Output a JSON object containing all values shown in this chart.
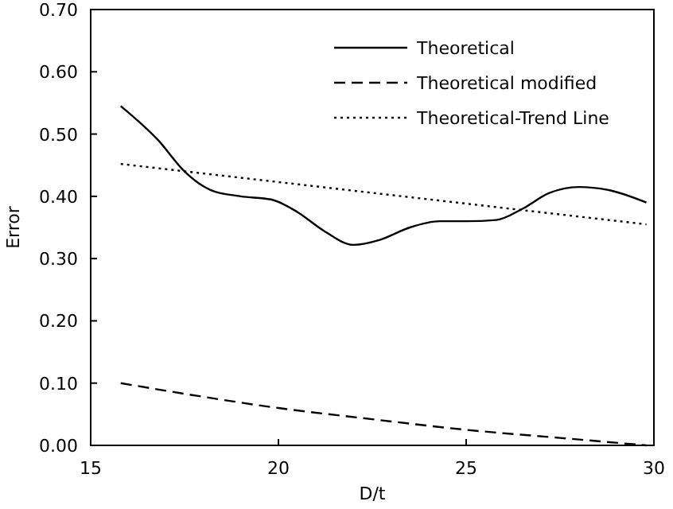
{
  "chart_data": {
    "type": "line",
    "xlabel": "D/t",
    "ylabel": "Error",
    "xlim": [
      15,
      30
    ],
    "ylim": [
      0,
      0.7
    ],
    "xticks": [
      15,
      20,
      25,
      30
    ],
    "yticks": [
      {
        "value": 0,
        "label": "0.00"
      },
      {
        "value": 0.1,
        "label": "0.10"
      },
      {
        "value": 0.2,
        "label": "0.20"
      },
      {
        "value": 0.3,
        "label": "0.30"
      },
      {
        "value": 0.4,
        "label": "0.40"
      },
      {
        "value": 0.5,
        "label": "0.50"
      },
      {
        "value": 0.6,
        "label": "0.60"
      },
      {
        "value": 0.7,
        "label": "0.70"
      }
    ],
    "legend": "top right",
    "grid": false,
    "series": [
      {
        "name": "Theoretical",
        "color": "#000000",
        "line_style": "solid",
        "x": [
          15.8,
          16.8,
          17.5,
          18.2,
          19,
          19.8,
          20.5,
          21.2,
          22,
          22.7,
          23.5,
          24.3,
          25,
          25.8,
          26.5,
          27.2,
          28,
          28.8,
          29.8
        ],
        "values": [
          0.545,
          0.49,
          0.44,
          0.41,
          0.4,
          0.395,
          0.375,
          0.345,
          0.322,
          0.33,
          0.35,
          0.36,
          0.36,
          0.362,
          0.38,
          0.405,
          0.415,
          0.41,
          0.39
        ]
      },
      {
        "name": "Theoretical modified",
        "color": "#000000",
        "line_style": "dashed",
        "x": [
          15.8,
          18,
          20,
          22.5,
          25,
          27.5,
          29.8
        ],
        "values": [
          0.1,
          0.078,
          0.06,
          0.042,
          0.025,
          0.012,
          0.0
        ]
      },
      {
        "name": "Theoretical-Trend Line",
        "color": "#000000",
        "line_style": "dotted",
        "x": [
          15.8,
          29.8
        ],
        "values": [
          0.452,
          0.355
        ]
      }
    ]
  }
}
